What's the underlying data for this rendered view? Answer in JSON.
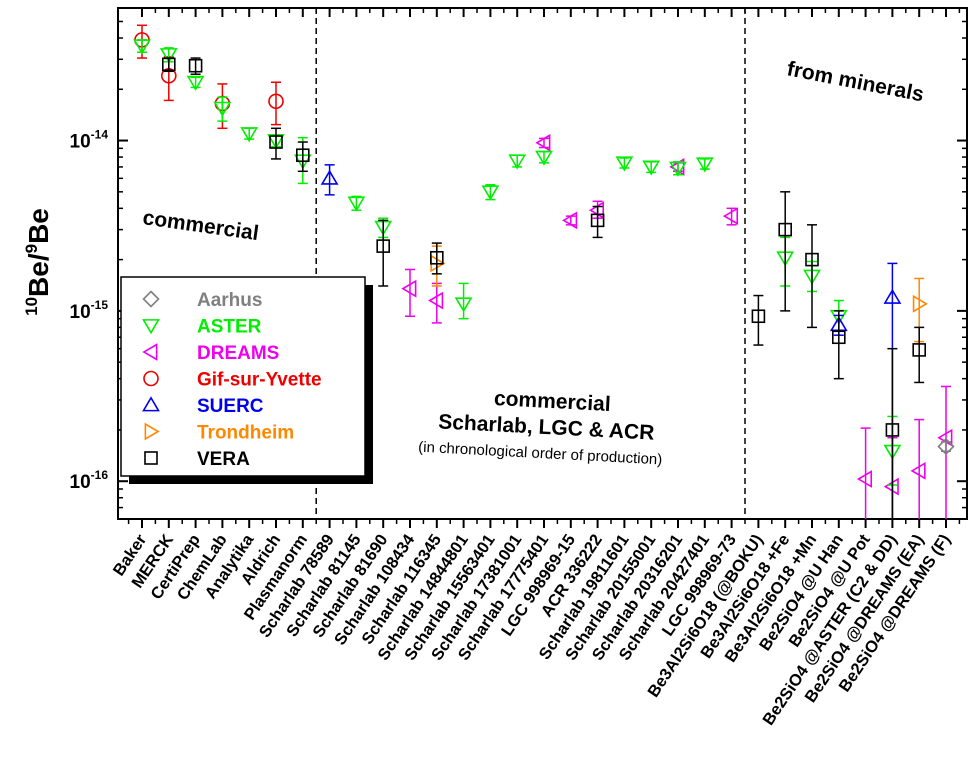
{
  "chart_data": {
    "type": "scatter",
    "y_scale": "log",
    "ylim": [
      6e-17,
      6e-14
    ],
    "ylabel_main": "Be/",
    "ylabel_sup1": "10",
    "ylabel_sup2": "9",
    "ylabel_end": "Be",
    "y_ticks": [
      {
        "value": 1e-14,
        "mant": "10",
        "exp": "-14"
      },
      {
        "value": 1e-15,
        "mant": "10",
        "exp": "-15"
      },
      {
        "value": 1e-16,
        "mant": "10",
        "exp": "-16"
      }
    ],
    "categories": [
      "Baker",
      "MERCK",
      "CertiPrep",
      "ChemLab",
      "Analytika",
      "Aldrich",
      "Plasmanorm",
      "Scharlab 78589",
      "Scharlab 81145",
      "Scharlab 81690",
      "Scharlab 108434",
      "Scharlab 116345",
      "Scharlab 14844801",
      "Scharlab 15563401",
      "Scharlab 17381001",
      "Scharlab 17775401",
      "LGC 998969-15",
      "ACR 336222",
      "Scharlab 19811601",
      "Scharlab 20155001",
      "Scharlab 20316201",
      "Scharlab 20427401",
      "LGC 998969-73",
      "Be3Al2Si6O18 (@BOKU)",
      "Be3Al2Si6O18 +Fe",
      "Be3Al2Si6O18 +Mn",
      "Be2SiO4 @U Han",
      "Be2SiO4 @U Pot",
      "Be2SiO4 @ASTER (C2 & DD)",
      "Be2SiO4 @DREAMS (EA)",
      "Be2SiO4 @DREAMS (F)"
    ],
    "series": [
      {
        "name": "Aarhus",
        "color": "#808080",
        "marker": "diamond",
        "points": [
          {
            "x": 30,
            "y": 1.6e-16,
            "lo": 1.5e-16,
            "hi": 1.7e-16
          }
        ]
      },
      {
        "name": "ASTER",
        "color": "#00ee00",
        "marker": "triangle-down",
        "points": [
          {
            "x": 0,
            "y": 3.6e-14,
            "lo": 3.3e-14,
            "hi": 3.9e-14
          },
          {
            "x": 1,
            "y": 3.2e-14,
            "lo": 2.9e-14,
            "hi": 3.5e-14
          },
          {
            "x": 2,
            "y": 2.2e-14,
            "lo": 2.05e-14,
            "hi": 2.35e-14
          },
          {
            "x": 3,
            "y": 1.55e-14,
            "lo": 1.3e-14,
            "hi": 1.8e-14
          },
          {
            "x": 4,
            "y": 1.1e-14,
            "lo": 1.02e-14,
            "hi": 1.18e-14
          },
          {
            "x": 5,
            "y": 1e-14,
            "lo": 9.2e-15,
            "hi": 1.08e-14
          },
          {
            "x": 6,
            "y": 7.6e-15,
            "lo": 5.6e-15,
            "hi": 1.04e-14
          },
          {
            "x": 8,
            "y": 4.3e-15,
            "lo": 3.9e-15,
            "hi": 4.7e-15
          },
          {
            "x": 9,
            "y": 3.1e-15,
            "lo": 2.7e-15,
            "hi": 3.5e-15
          },
          {
            "x": 12,
            "y": 1.1e-15,
            "lo": 9e-16,
            "hi": 1.45e-15
          },
          {
            "x": 13,
            "y": 5e-15,
            "lo": 4.5e-15,
            "hi": 5.5e-15
          },
          {
            "x": 14,
            "y": 7.6e-15,
            "lo": 7e-15,
            "hi": 8.2e-15
          },
          {
            "x": 15,
            "y": 8e-15,
            "lo": 7.4e-15,
            "hi": 8.6e-15
          },
          {
            "x": 18,
            "y": 7.4e-15,
            "lo": 6.9e-15,
            "hi": 7.9e-15
          },
          {
            "x": 19,
            "y": 7e-15,
            "lo": 6.5e-15,
            "hi": 7.5e-15
          },
          {
            "x": 20,
            "y": 6.9e-15,
            "lo": 6.3e-15,
            "hi": 7.5e-15
          },
          {
            "x": 21,
            "y": 7.3e-15,
            "lo": 6.8e-15,
            "hi": 7.8e-15
          },
          {
            "x": 24,
            "y": 2.05e-15,
            "lo": 1.4e-15,
            "hi": 2.7e-15
          },
          {
            "x": 25,
            "y": 1.6e-15,
            "lo": 1.3e-15,
            "hi": 1.95e-15
          },
          {
            "x": 26,
            "y": 9.3e-16,
            "lo": 7.7e-16,
            "hi": 1.15e-15
          },
          {
            "x": 28,
            "y": 1.5e-16,
            "lo": 9.5e-17,
            "hi": 2.4e-16
          }
        ]
      },
      {
        "name": "DREAMS",
        "color": "#ee00ee",
        "marker": "triangle-left",
        "points": [
          {
            "x": 10,
            "y": 1.35e-15,
            "lo": 9.3e-16,
            "hi": 1.75e-15
          },
          {
            "x": 11,
            "y": 1.15e-15,
            "lo": 8.5e-16,
            "hi": 1.45e-15
          },
          {
            "x": 15,
            "y": 9.7e-15,
            "lo": 9.1e-15,
            "hi": 1.03e-14
          },
          {
            "x": 16,
            "y": 3.4e-15,
            "lo": 3.2e-15,
            "hi": 3.6e-15
          },
          {
            "x": 17,
            "y": 3.9e-15,
            "lo": 3.5e-15,
            "hi": 4.4e-15
          },
          {
            "x": 20,
            "y": 7e-15,
            "lo": 6.6e-15,
            "hi": 7.4e-15
          },
          {
            "x": 22,
            "y": 3.6e-15,
            "lo": 3.2e-15,
            "hi": 4e-15
          },
          {
            "x": 27,
            "y": 1.03e-16,
            "lo": 4e-17,
            "hi": 2.05e-16
          },
          {
            "x": 28,
            "y": 9.3e-17,
            "lo": 4e-17,
            "hi": 1.8e-16
          },
          {
            "x": 29,
            "y": 1.15e-16,
            "lo": 4e-17,
            "hi": 2.3e-16
          },
          {
            "x": 30,
            "y": 1.8e-16,
            "lo": 4e-17,
            "hi": 3.6e-16
          }
        ]
      },
      {
        "name": "Gif-sur-Yvette",
        "color": "#ee0000",
        "marker": "circle",
        "points": [
          {
            "x": 0,
            "y": 3.9e-14,
            "lo": 3.05e-14,
            "hi": 4.75e-14
          },
          {
            "x": 1,
            "y": 2.4e-14,
            "lo": 1.72e-14,
            "hi": 3.1e-14
          },
          {
            "x": 3,
            "y": 1.65e-14,
            "lo": 1.18e-14,
            "hi": 2.15e-14
          },
          {
            "x": 5,
            "y": 1.7e-14,
            "lo": 1.24e-14,
            "hi": 2.2e-14
          }
        ]
      },
      {
        "name": "SUERC",
        "color": "#0000ee",
        "marker": "triangle-up",
        "points": [
          {
            "x": 7,
            "y": 6e-15,
            "lo": 4.8e-15,
            "hi": 7.2e-15
          },
          {
            "x": 26,
            "y": 8.3e-16,
            "lo": 7.2e-16,
            "hi": 9.4e-16
          },
          {
            "x": 28,
            "y": 1.2e-15,
            "lo": 4.3e-17,
            "hi": 1.9e-15
          }
        ]
      },
      {
        "name": "Trondheim",
        "color": "#ff8800",
        "marker": "triangle-right",
        "points": [
          {
            "x": 11,
            "y": 1.9e-15,
            "lo": 1.4e-15,
            "hi": 2.4e-15
          },
          {
            "x": 29,
            "y": 1.1e-15,
            "lo": 6.6e-16,
            "hi": 1.55e-15
          }
        ]
      },
      {
        "name": "VERA",
        "color": "#000000",
        "marker": "square",
        "points": [
          {
            "x": 1,
            "y": 2.8e-14,
            "lo": 2.55e-14,
            "hi": 3.05e-14
          },
          {
            "x": 2,
            "y": 2.75e-14,
            "lo": 2.45e-14,
            "hi": 3.05e-14
          },
          {
            "x": 5,
            "y": 9.8e-15,
            "lo": 7.8e-15,
            "hi": 1.18e-14
          },
          {
            "x": 6,
            "y": 8.2e-15,
            "lo": 6.6e-15,
            "hi": 9.8e-15
          },
          {
            "x": 9,
            "y": 2.4e-15,
            "lo": 1.4e-15,
            "hi": 3.4e-15
          },
          {
            "x": 11,
            "y": 2.05e-15,
            "lo": 1.65e-15,
            "hi": 2.5e-15
          },
          {
            "x": 17,
            "y": 3.4e-15,
            "lo": 2.7e-15,
            "hi": 4.1e-15
          },
          {
            "x": 23,
            "y": 9.3e-16,
            "lo": 6.3e-16,
            "hi": 1.23e-15
          },
          {
            "x": 24,
            "y": 3e-15,
            "lo": 1e-15,
            "hi": 5e-15
          },
          {
            "x": 25,
            "y": 2e-15,
            "lo": 8e-16,
            "hi": 3.2e-15
          },
          {
            "x": 26,
            "y": 7e-16,
            "lo": 4e-16,
            "hi": 1e-15
          },
          {
            "x": 28,
            "y": 2e-16,
            "lo": 4.3e-17,
            "hi": 6e-16
          },
          {
            "x": 29,
            "y": 5.9e-16,
            "lo": 3.8e-16,
            "hi": 8e-16
          }
        ]
      }
    ],
    "separators_after_index": [
      6,
      22
    ],
    "annotations": {
      "commercial_left": "commercial",
      "from_minerals": "from minerals",
      "commercial_mid": "commercial",
      "scharlab_line": "Scharlab, LGC & ACR",
      "chrono_line": "(in chronological order of production)"
    },
    "legend_placement": "middle-left"
  }
}
